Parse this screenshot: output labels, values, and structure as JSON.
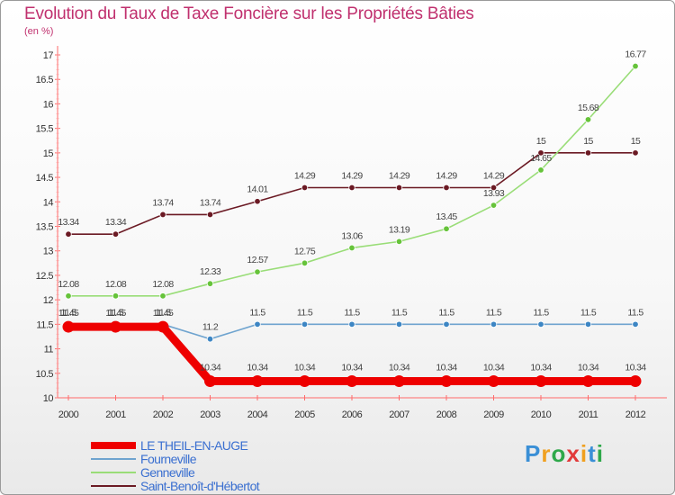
{
  "title": "Evolution du Taux de Taxe Foncière sur les Propriétés Bâties",
  "unit": "(en %)",
  "logo": {
    "chars": [
      "P",
      "r",
      "o",
      "x",
      "i",
      "t",
      "i"
    ],
    "colors": [
      "#3a8fd6",
      "#f0a020",
      "#2ea84a",
      "#e23a3a",
      "#f0a020",
      "#3a8fd6",
      "#2ea84a"
    ]
  },
  "chart_data": {
    "type": "line",
    "title": "Evolution du Taux de Taxe Foncière sur les Propriétés Bâties",
    "ylabel": "(en %)",
    "xlabel": "",
    "ylim": [
      10,
      17
    ],
    "yticks": [
      "10",
      "10.5",
      "11",
      "11.5",
      "12",
      "12.5",
      "13",
      "13.5",
      "14",
      "14.5",
      "15",
      "15.5",
      "16",
      "16.5",
      "17"
    ],
    "categories": [
      "2000",
      "2001",
      "2002",
      "2003",
      "2004",
      "2005",
      "2006",
      "2007",
      "2008",
      "2009",
      "2010",
      "2011",
      "2012"
    ],
    "series": [
      {
        "name": "Saint-Benoît-d'Hébertot",
        "color": "#6b1a24",
        "pointColor": "#6b1a24",
        "values": [
          13.34,
          13.34,
          13.74,
          13.74,
          14.01,
          14.29,
          14.29,
          14.29,
          14.29,
          14.29,
          15,
          15,
          15
        ],
        "labels": [
          "13.34",
          "13.34",
          "13.74",
          "13.74",
          "14.01",
          "14.29",
          "14.29",
          "14.29",
          "14.29",
          "14.29",
          "15",
          "15",
          "15"
        ]
      },
      {
        "name": "Genneville",
        "color": "#99dd77",
        "pointColor": "#66c33a",
        "values": [
          12.08,
          12.08,
          12.08,
          12.33,
          12.57,
          12.75,
          13.06,
          13.19,
          13.45,
          13.93,
          14.65,
          15.68,
          16.77
        ],
        "labels": [
          "12.08",
          "12.08",
          "12.08",
          "12.33",
          "12.57",
          "12.75",
          "13.06",
          "13.19",
          "13.45",
          "13.93",
          "14.65",
          "15.68",
          "16.77"
        ]
      },
      {
        "name": "Fourneville",
        "color": "#6fa4cf",
        "pointColor": "#3d86c4",
        "values": [
          11.5,
          11.5,
          11.5,
          11.2,
          11.5,
          11.5,
          11.5,
          11.5,
          11.5,
          11.5,
          11.5,
          11.5,
          11.5
        ],
        "labels": [
          "11.5",
          "11.5",
          "11.5",
          "11.2",
          "11.5",
          "11.5",
          "11.5",
          "11.5",
          "11.5",
          "11.5",
          "11.5",
          "11.5",
          "11.5"
        ]
      },
      {
        "name": "LE THEIL-EN-AUGE",
        "color": "#ee0000",
        "pointColor": "#ee0000",
        "bold": true,
        "values": [
          11.45,
          11.45,
          11.45,
          10.34,
          10.34,
          10.34,
          10.34,
          10.34,
          10.34,
          10.34,
          10.34,
          10.34,
          10.34
        ],
        "labels": [
          "11.45",
          "11.45",
          "11.45",
          "10.34",
          "10.34",
          "10.34",
          "10.34",
          "10.34",
          "10.34",
          "10.34",
          "10.34",
          "10.34",
          "10.34"
        ]
      }
    ],
    "legend": [
      {
        "name": "LE THEIL-EN-AUGE",
        "color": "#ee0000",
        "textColor": "#3a6fd0",
        "width": 8
      },
      {
        "name": "Fourneville",
        "color": "#6fa4cf",
        "textColor": "#3a6fd0",
        "width": 2
      },
      {
        "name": "Genneville",
        "color": "#99dd77",
        "textColor": "#3a6fd0",
        "width": 2
      },
      {
        "name": "Saint-Benoît-d'Hébertot",
        "color": "#6b1a24",
        "textColor": "#3a6fd0",
        "width": 2
      }
    ]
  }
}
